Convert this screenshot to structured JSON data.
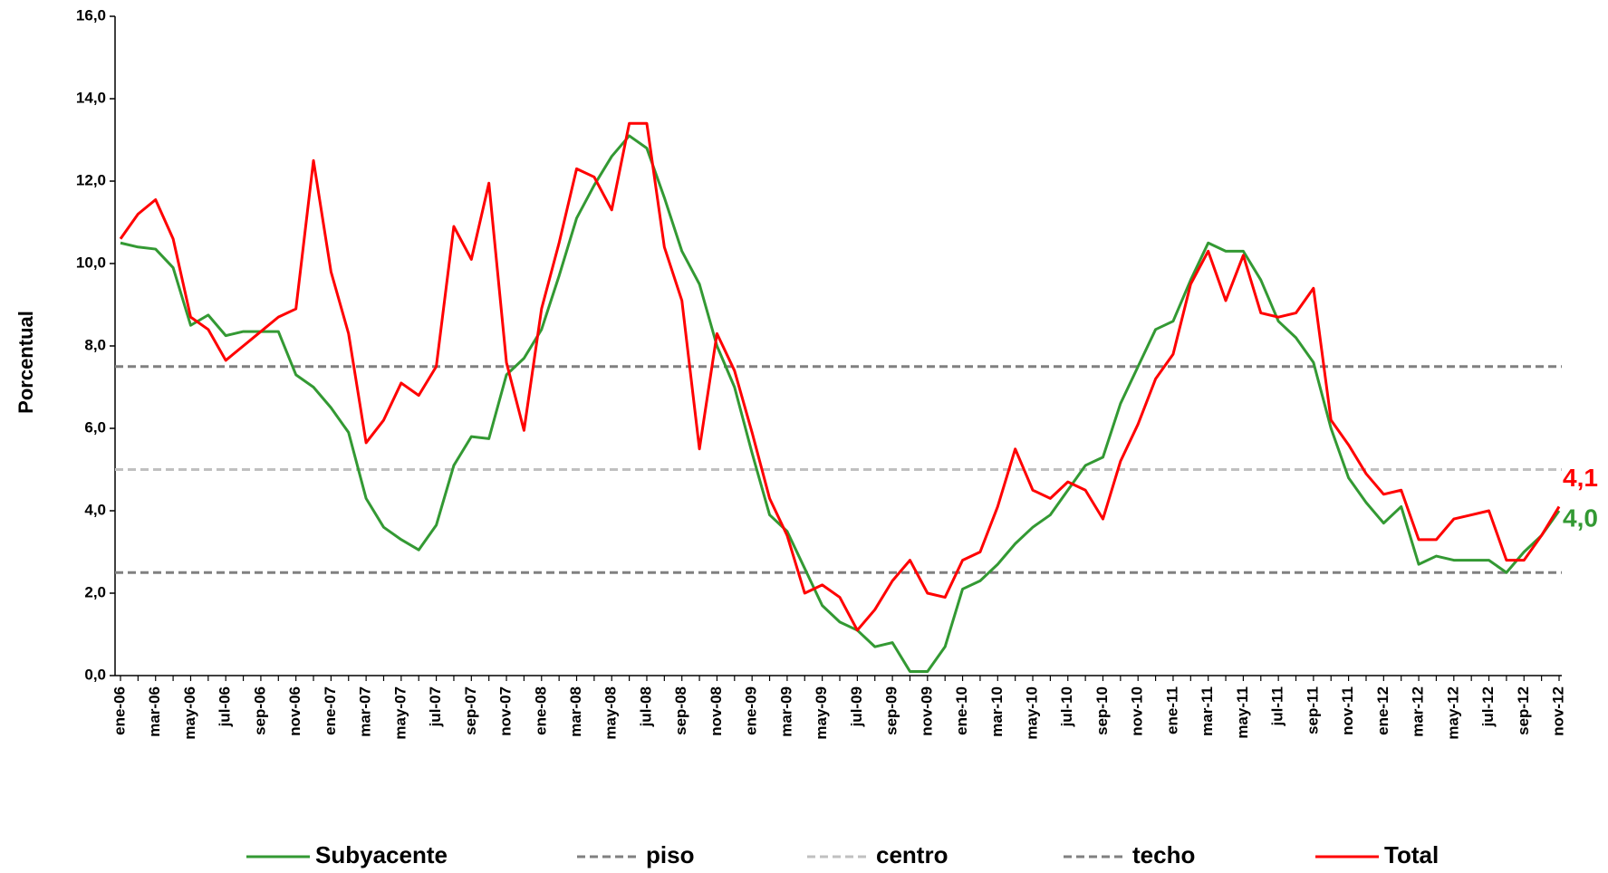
{
  "chart_data": {
    "type": "line",
    "y_label": "Porcentual",
    "categories": [
      "ene-06",
      null,
      "mar-06",
      null,
      "may-06",
      null,
      "jul-06",
      null,
      "sep-06",
      null,
      "nov-06",
      null,
      "ene-07",
      null,
      "mar-07",
      null,
      "may-07",
      null,
      "jul-07",
      null,
      "sep-07",
      null,
      "nov-07",
      null,
      "ene-08",
      null,
      "mar-08",
      null,
      "may-08",
      null,
      "jul-08",
      null,
      "sep-08",
      null,
      "nov-08",
      null,
      "ene-09",
      null,
      "mar-09",
      null,
      "may-09",
      null,
      "jul-09",
      null,
      "sep-09",
      null,
      "nov-09",
      null,
      "ene-10",
      null,
      "mar-10",
      null,
      "may-10",
      null,
      "jul-10",
      null,
      "sep-10",
      null,
      "nov-10",
      null,
      "ene-11",
      null,
      "mar-11",
      null,
      "may-11",
      null,
      "jul-11",
      null,
      "sep-11",
      null,
      "nov-11",
      null,
      "ene-12",
      null,
      "mar-12",
      null,
      "may-12",
      null,
      "jul-12",
      null,
      "sep-12",
      null,
      "nov-12"
    ],
    "ylim": [
      0,
      16
    ],
    "yticks": [
      {
        "value": 0,
        "label": "0,0"
      },
      {
        "value": 2,
        "label": "2,0"
      },
      {
        "value": 4,
        "label": "4,0"
      },
      {
        "value": 6,
        "label": "6,0"
      },
      {
        "value": 8,
        "label": "8,0"
      },
      {
        "value": 10,
        "label": "10,0"
      },
      {
        "value": 12,
        "label": "12,0"
      },
      {
        "value": 14,
        "label": "14,0"
      },
      {
        "value": 16,
        "label": "16,0"
      }
    ],
    "grid": false,
    "series": [
      {
        "name": "Subyacente",
        "color": "#339933",
        "end_label": "4,0",
        "values": [
          10.5,
          10.4,
          10.35,
          9.9,
          8.5,
          8.75,
          8.25,
          8.35,
          8.35,
          8.35,
          7.3,
          7.0,
          6.5,
          5.9,
          4.3,
          3.6,
          3.3,
          3.05,
          3.65,
          5.1,
          5.8,
          5.75,
          7.3,
          7.7,
          8.4,
          9.7,
          11.1,
          11.9,
          12.6,
          13.1,
          12.8,
          11.6,
          10.3,
          9.5,
          8.0,
          7.0,
          5.4,
          3.9,
          3.5,
          2.6,
          1.7,
          1.3,
          1.1,
          0.7,
          0.8,
          0.1,
          0.1,
          0.7,
          2.1,
          2.3,
          2.7,
          3.2,
          3.6,
          3.9,
          4.5,
          5.1,
          5.3,
          6.6,
          7.5,
          8.4,
          8.6,
          9.6,
          10.5,
          10.3,
          10.3,
          9.6,
          8.6,
          8.2,
          7.6,
          6.0,
          4.8,
          4.2,
          3.7,
          4.1,
          2.7,
          2.9,
          2.8,
          2.8,
          2.8,
          2.5,
          3.0,
          3.4,
          4.0
        ]
      },
      {
        "name": "piso",
        "color": "#808080",
        "dashed": true,
        "value": 2.5
      },
      {
        "name": "centro",
        "color": "#c0c0c0",
        "dashed": true,
        "value": 5
      },
      {
        "name": "techo",
        "color": "#808080",
        "dashed": true,
        "value": 7.5
      },
      {
        "name": "Total",
        "color": "#ff0000",
        "end_label": "4,1",
        "values": [
          10.6,
          11.2,
          11.55,
          10.6,
          8.7,
          8.4,
          7.65,
          8.0,
          8.35,
          8.7,
          8.9,
          12.5,
          9.8,
          8.3,
          5.65,
          6.2,
          7.1,
          6.8,
          7.5,
          10.9,
          10.1,
          11.95,
          7.6,
          5.95,
          8.9,
          10.5,
          12.3,
          12.1,
          11.3,
          13.4,
          13.4,
          10.4,
          9.1,
          5.5,
          8.3,
          7.4,
          5.9,
          4.3,
          3.4,
          2.0,
          2.2,
          1.9,
          1.1,
          1.6,
          2.3,
          2.8,
          2.0,
          1.9,
          2.8,
          3.0,
          4.1,
          5.5,
          4.5,
          4.3,
          4.7,
          4.5,
          3.8,
          5.2,
          6.1,
          7.2,
          7.8,
          9.5,
          10.3,
          9.1,
          10.2,
          8.8,
          8.7,
          8.8,
          9.4,
          6.2,
          5.6,
          4.9,
          4.4,
          4.5,
          3.3,
          3.3,
          3.8,
          3.9,
          4.0,
          2.8,
          2.8,
          3.4,
          4.1
        ]
      }
    ]
  }
}
